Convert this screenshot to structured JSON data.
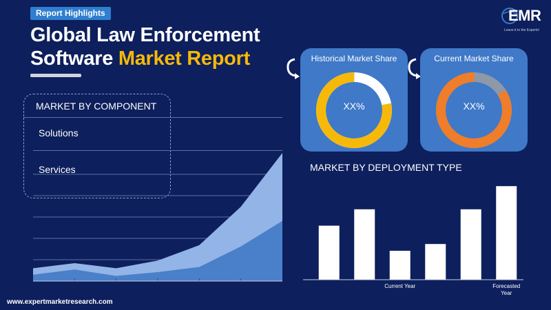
{
  "header": {
    "badge": "Report Highlights",
    "title_line1": "Global Law Enforcement",
    "title_line2_white": "Software",
    "title_line2_accent": "Market Report"
  },
  "logo": {
    "name": "EMR",
    "tagline": "Leave it to the Experts!"
  },
  "component_section": {
    "title": "MARKET BY COMPONENT",
    "items": [
      "Solutions",
      "Services"
    ]
  },
  "cards": [
    {
      "title": "Historical Market Share",
      "value": "XX%",
      "fill_fraction": 0.78,
      "color": "#f6b90a",
      "rest_color": "#ffffff"
    },
    {
      "title": "Current Market Share",
      "value": "XX%",
      "fill_fraction": 0.84,
      "color": "#ef7d2a",
      "rest_color": "#8e98a8"
    }
  ],
  "area_chart": {
    "type": "area",
    "series_back": [
      0.1,
      0.14,
      0.1,
      0.16,
      0.28,
      0.58,
      1.0
    ],
    "series_front": [
      0.05,
      0.09,
      0.04,
      0.07,
      0.11,
      0.27,
      0.47
    ],
    "back_color": "#93b4e6",
    "front_color": "#4a80c9",
    "grid_levels": 6
  },
  "bar_chart": {
    "title": "MARKET BY DEPLOYMENT TYPE",
    "type": "bar",
    "values": [
      0.56,
      0.73,
      0.3,
      0.37,
      0.73,
      0.97
    ],
    "tick_labels": [
      "",
      "",
      "Current Year",
      "",
      "",
      "Forecasted Year"
    ],
    "bar_color": "#ffffff"
  },
  "footer": {
    "url": "www.expertmarketresearch.com"
  }
}
